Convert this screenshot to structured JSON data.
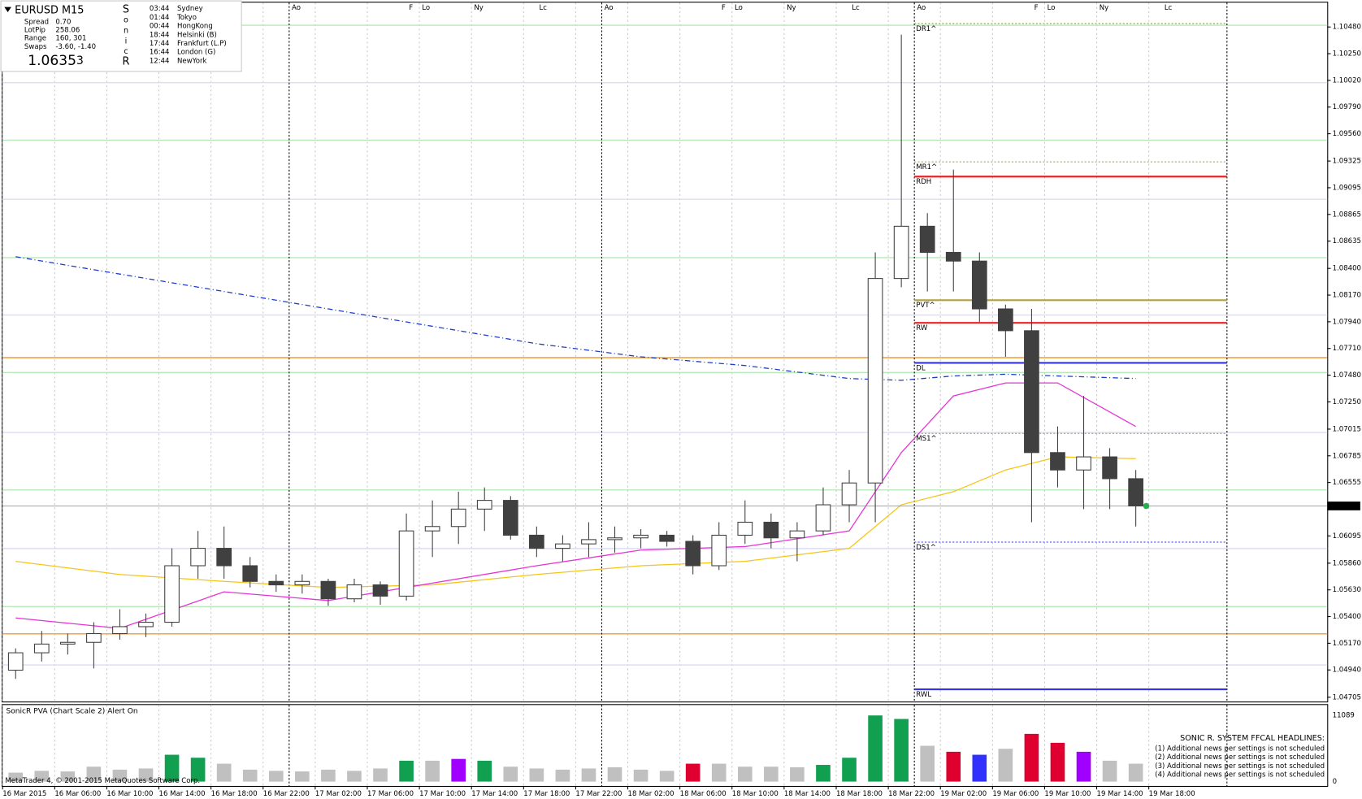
{
  "panel": {
    "symbol": "EURUSD  M15",
    "rows": [
      [
        "Spread",
        "0.70"
      ],
      [
        "LotPip",
        "258.06"
      ],
      [
        "Range",
        "160, 301"
      ],
      [
        "Swaps",
        "-3.60, -1.40"
      ]
    ],
    "bid_main": "1.0635",
    "bid_pip": "3",
    "brand": [
      "S",
      "o",
      "n",
      "i",
      "c",
      "R"
    ],
    "sessions": [
      [
        "03:44",
        "Sydney"
      ],
      [
        "01:44",
        "Tokyo"
      ],
      [
        "00:44",
        "HongKong"
      ],
      [
        "18:44",
        "Helsinki  (B)"
      ],
      [
        "17:44",
        "Frankfurt  (L.P)"
      ],
      [
        "16:44",
        "London  (G)"
      ],
      [
        "12:44",
        "NewYork"
      ]
    ]
  },
  "headlines": {
    "title": "SONIC R. SYSTEM  FFCAL HEADLINES:",
    "items": [
      "(1)  Additional news per settings is not scheduled",
      "(2)  Additional news per settings is not scheduled",
      "(3)  Additional news per settings is not scheduled",
      "(4)  Additional news per settings is not scheduled"
    ]
  },
  "footer": "MetaTrader 4, © 2001-2015 MetaQuotes Software Corp.",
  "chart_data": [
    {
      "type": "candlestick",
      "xlim": [
        -0.2,
        101.7
      ],
      "ylim": [
        1.04668,
        1.1069
      ],
      "xticks": [
        {
          "value": 0,
          "label": "16 Mar 2015"
        },
        {
          "value": 4,
          "label": "16 Mar 06:00"
        },
        {
          "value": 8,
          "label": "16 Mar 10:00"
        },
        {
          "value": 12,
          "label": "16 Mar 14:00"
        },
        {
          "value": 16,
          "label": "16 Mar 18:00"
        },
        {
          "value": 20,
          "label": "16 Mar 22:00"
        },
        {
          "value": 24,
          "label": "17 Mar 02:00"
        },
        {
          "value": 28,
          "label": "17 Mar 06:00"
        },
        {
          "value": 32,
          "label": "17 Mar 10:00"
        },
        {
          "value": 36,
          "label": "17 Mar 14:00"
        },
        {
          "value": 40,
          "label": "17 Mar 18:00"
        },
        {
          "value": 44,
          "label": "17 Mar 22:00"
        },
        {
          "value": 48,
          "label": "18 Mar 02:00"
        },
        {
          "value": 52,
          "label": "18 Mar 06:00"
        },
        {
          "value": 56,
          "label": "18 Mar 10:00"
        },
        {
          "value": 60,
          "label": "18 Mar 14:00"
        },
        {
          "value": 64,
          "label": "18 Mar 18:00"
        },
        {
          "value": 68,
          "label": "18 Mar 22:00"
        },
        {
          "value": 72,
          "label": "19 Mar 02:00"
        },
        {
          "value": 76,
          "label": "19 Mar 06:00"
        },
        {
          "value": 80,
          "label": "19 Mar 10:00"
        },
        {
          "value": 84,
          "label": "19 Mar 14:00"
        },
        {
          "value": 88,
          "label": "19 Mar 18:00"
        }
      ],
      "yticks": [
        {
          "value": 1.1048,
          "label": "1.10480"
        },
        {
          "value": 1.1025,
          "label": "1.10250"
        },
        {
          "value": 1.1002,
          "label": "1.10020"
        },
        {
          "value": 1.0979,
          "label": "1.09790"
        },
        {
          "value": 1.0956,
          "label": "1.09560"
        },
        {
          "value": 1.09325,
          "label": "1.09325"
        },
        {
          "value": 1.09095,
          "label": "1.09095"
        },
        {
          "value": 1.08865,
          "label": "1.08865"
        },
        {
          "value": 1.08635,
          "label": "1.08635"
        },
        {
          "value": 1.084,
          "label": "1.08400"
        },
        {
          "value": 1.0817,
          "label": "1.08170"
        },
        {
          "value": 1.0794,
          "label": "1.07940"
        },
        {
          "value": 1.0771,
          "label": "1.07710"
        },
        {
          "value": 1.0748,
          "label": "1.07480"
        },
        {
          "value": 1.0725,
          "label": "1.07250"
        },
        {
          "value": 1.07015,
          "label": "1.07015"
        },
        {
          "value": 1.06785,
          "label": "1.06785"
        },
        {
          "value": 1.06555,
          "label": "1.06555"
        },
        {
          "value": 1.06095,
          "label": "1.06095"
        },
        {
          "value": 1.0586,
          "label": "1.05860"
        },
        {
          "value": 1.0563,
          "label": "1.05630"
        },
        {
          "value": 1.054,
          "label": "1.05400"
        },
        {
          "value": 1.0517,
          "label": "1.05170"
        },
        {
          "value": 1.0494,
          "label": "1.04940"
        },
        {
          "value": 1.04705,
          "label": "1.04705"
        }
      ],
      "current": {
        "value": 1.06353,
        "label": "1.06353",
        "color": "#22b14c"
      },
      "up_color": "#ffffff",
      "down_color": "#404040",
      "wick_color": "#404040",
      "x": [
        1,
        3,
        5,
        7,
        9,
        11,
        13,
        15,
        17,
        19,
        21,
        23,
        25,
        27,
        29,
        31,
        33,
        35,
        37,
        39,
        41,
        43,
        45,
        47,
        49,
        51,
        53,
        55,
        57,
        59,
        61,
        63,
        65,
        67,
        69,
        71,
        73,
        75,
        77,
        79,
        81,
        83,
        85,
        87
      ],
      "open": [
        1.04938,
        1.05088,
        1.05163,
        1.05178,
        1.05253,
        1.05313,
        1.05351,
        1.05838,
        1.05988,
        1.05838,
        1.05703,
        1.05673,
        1.05703,
        1.05553,
        1.05673,
        1.05576,
        1.06138,
        1.06176,
        1.06326,
        1.06401,
        1.06101,
        1.05988,
        1.06026,
        1.06063,
        1.06078,
        1.06101,
        1.06048,
        1.05838,
        1.06101,
        1.06213,
        1.06078,
        1.06138,
        1.06363,
        1.06551,
        1.08313,
        1.08763,
        1.08538,
        1.08463,
        1.08051,
        1.07863,
        1.06813,
        1.06663,
        1.06776,
        1.06588
      ],
      "high": [
        1.05126,
        1.05276,
        1.05253,
        1.05351,
        1.05463,
        1.05426,
        1.05988,
        1.06138,
        1.06176,
        1.05913,
        1.05763,
        1.05763,
        1.05726,
        1.05726,
        1.05703,
        1.06288,
        1.06401,
        1.06476,
        1.06513,
        1.06438,
        1.06176,
        1.06101,
        1.06213,
        1.06176,
        1.06153,
        1.06138,
        1.06101,
        1.06213,
        1.06401,
        1.06288,
        1.06213,
        1.06513,
        1.06663,
        1.08538,
        1.10413,
        1.08876,
        1.09251,
        1.08538,
        1.08088,
        1.08051,
        1.07038,
        1.07301,
        1.06851,
        1.06663
      ],
      "low": [
        1.04863,
        1.05013,
        1.05073,
        1.04953,
        1.05201,
        1.05223,
        1.05313,
        1.05726,
        1.05726,
        1.05651,
        1.05613,
        1.05598,
        1.05493,
        1.05523,
        1.05501,
        1.05538,
        1.05913,
        1.06026,
        1.06138,
        1.06063,
        1.05913,
        1.05876,
        1.05913,
        1.05951,
        1.05988,
        1.06003,
        1.05763,
        1.05801,
        1.06026,
        1.05988,
        1.05876,
        1.06101,
        1.06213,
        1.06213,
        1.08238,
        1.08201,
        1.08201,
        1.07938,
        1.07638,
        1.06213,
        1.06513,
        1.06326,
        1.06326,
        1.06176
      ],
      "close": [
        1.05088,
        1.05163,
        1.05178,
        1.05253,
        1.05313,
        1.05351,
        1.05838,
        1.05988,
        1.05838,
        1.05703,
        1.05673,
        1.05703,
        1.05553,
        1.05673,
        1.05576,
        1.06138,
        1.06176,
        1.06326,
        1.06401,
        1.06101,
        1.05988,
        1.06026,
        1.06063,
        1.06078,
        1.06101,
        1.06048,
        1.05838,
        1.06101,
        1.06213,
        1.06078,
        1.06138,
        1.06363,
        1.06551,
        1.08313,
        1.08763,
        1.08538,
        1.08463,
        1.08051,
        1.07863,
        1.06813,
        1.06663,
        1.06776,
        1.06588,
        1.06353
      ],
      "overlays": [
        {
          "color": "#1e3ccc",
          "dash": true,
          "x": [
            1,
            9,
            17,
            25,
            33,
            41,
            49,
            57,
            65,
            69,
            73,
            77,
            81,
            87
          ],
          "values": [
            1.08501,
            1.08351,
            1.08201,
            1.08051,
            1.07901,
            1.07751,
            1.07638,
            1.07563,
            1.07451,
            1.07436,
            1.07473,
            1.07488,
            1.07473,
            1.07451
          ]
        },
        {
          "color": "#f5c518",
          "dash": false,
          "x": [
            1,
            9,
            17,
            25,
            33,
            41,
            49,
            57,
            65,
            69,
            73,
            77,
            81,
            87
          ],
          "values": [
            1.05876,
            1.05763,
            1.05703,
            1.05651,
            1.05673,
            1.05763,
            1.05838,
            1.05876,
            1.05988,
            1.06363,
            1.06476,
            1.06663,
            1.06776,
            1.06761
          ]
        },
        {
          "color": "#e633d4",
          "dash": false,
          "x": [
            1,
            9,
            17,
            25,
            33,
            41,
            49,
            57,
            65,
            69,
            73,
            77,
            81,
            87
          ],
          "values": [
            1.05388,
            1.05298,
            1.05613,
            1.05538,
            1.05688,
            1.05838,
            1.05973,
            1.06003,
            1.06138,
            1.06813,
            1.07301,
            1.07413,
            1.07413,
            1.07038
          ]
        }
      ],
      "hlines": [
        {
          "value": 1.10495,
          "color": "#b8e8b8"
        },
        {
          "value": 1.09505,
          "color": "#b8e8b8"
        },
        {
          "value": 1.08493,
          "color": "#b8e8b8"
        },
        {
          "value": 1.07503,
          "color": "#b8e8b8"
        },
        {
          "value": 1.06491,
          "color": "#b8e8b8"
        },
        {
          "value": 1.05486,
          "color": "#b8e8b8"
        },
        {
          "value": 1.1,
          "color": "#dcdcf6"
        },
        {
          "value": 1.08995,
          "color": "#dcdcf6"
        },
        {
          "value": 1.07998,
          "color": "#dcdcf6"
        },
        {
          "value": 1.06986,
          "color": "#dcdcf6"
        },
        {
          "value": 1.05986,
          "color": "#dcdcf6"
        },
        {
          "value": 1.04983,
          "color": "#dcdcf6"
        },
        {
          "value": 1.07631,
          "color": "#f39c33"
        },
        {
          "value": 1.05251,
          "color": "#f39c33"
        }
      ],
      "level_range": [
        70,
        94
      ],
      "levels": [
        {
          "label": "DR1^",
          "value": 1.1051,
          "color": "#9a9a40",
          "dash": true
        },
        {
          "label": "MR1^",
          "value": 1.09318,
          "color": "#9a9a40",
          "dash": true
        },
        {
          "label": "RDH",
          "value": 1.09191,
          "color": "#ee2222",
          "dash": false
        },
        {
          "label": "PVT^",
          "value": 1.08126,
          "color": "#b0a040",
          "dash": false
        },
        {
          "label": "RW",
          "value": 1.07931,
          "color": "#ee2222",
          "dash": false
        },
        {
          "label": "DL",
          "value": 1.07586,
          "color": "#3333ee",
          "dash": false
        },
        {
          "label": "MS1^",
          "value": 1.06978,
          "color": "#9a9a40",
          "dash": true
        },
        {
          "label": "DS1^",
          "value": 1.06041,
          "color": "#3333ee",
          "dash": true
        },
        {
          "label": "RWL",
          "value": 1.04773,
          "color": "#3333ee",
          "dash": false
        }
      ],
      "day_separators": [
        22,
        46,
        70,
        94
      ],
      "session_markers": [
        {
          "label": "Ao",
          "x": 22
        },
        {
          "label": "F",
          "x": 31
        },
        {
          "label": "Lo",
          "x": 32
        },
        {
          "label": "Ny",
          "x": 36
        },
        {
          "label": "Lc",
          "x": 41
        },
        {
          "label": "Ao",
          "x": 46
        },
        {
          "label": "F",
          "x": 55
        },
        {
          "label": "Lo",
          "x": 56
        },
        {
          "label": "Ny",
          "x": 60
        },
        {
          "label": "Lc",
          "x": 65
        },
        {
          "label": "Ao",
          "x": 70
        },
        {
          "label": "F",
          "x": 79
        },
        {
          "label": "Lo",
          "x": 80
        },
        {
          "label": "Ny",
          "x": 84
        },
        {
          "label": "Lc",
          "x": 89
        }
      ]
    },
    {
      "type": "bar",
      "title": "SonicR PVA  (Chart Scale 2)  Alert On",
      "ylim": [
        0,
        11089
      ],
      "yticks": [
        0,
        11089
      ],
      "x": [
        1,
        3,
        5,
        7,
        9,
        11,
        13,
        15,
        17,
        19,
        21,
        23,
        25,
        27,
        29,
        31,
        33,
        35,
        37,
        39,
        41,
        43,
        45,
        47,
        49,
        51,
        53,
        55,
        57,
        59,
        61,
        63,
        65,
        67,
        69,
        71,
        73,
        75,
        77,
        79,
        81,
        83,
        85,
        87
      ],
      "values": [
        1500,
        1800,
        1700,
        2500,
        2000,
        2200,
        4500,
        4000,
        3000,
        2000,
        1800,
        1700,
        2000,
        1800,
        2200,
        3500,
        3500,
        3800,
        3500,
        2500,
        2200,
        2000,
        2200,
        2400,
        2000,
        1800,
        3000,
        3000,
        2500,
        2500,
        2400,
        2800,
        4000,
        11089,
        10500,
        6000,
        5000,
        4500,
        5500,
        8000,
        6500,
        5000,
        3500,
        3000
      ],
      "colors": [
        "#c0c0c0",
        "#c0c0c0",
        "#c0c0c0",
        "#c0c0c0",
        "#c0c0c0",
        "#c0c0c0",
        "#10a050",
        "#10a050",
        "#c0c0c0",
        "#c0c0c0",
        "#c0c0c0",
        "#c0c0c0",
        "#c0c0c0",
        "#c0c0c0",
        "#c0c0c0",
        "#10a050",
        "#c0c0c0",
        "#a000ff",
        "#10a050",
        "#c0c0c0",
        "#c0c0c0",
        "#c0c0c0",
        "#c0c0c0",
        "#c0c0c0",
        "#c0c0c0",
        "#c0c0c0",
        "#e00030",
        "#c0c0c0",
        "#c0c0c0",
        "#c0c0c0",
        "#c0c0c0",
        "#10a050",
        "#10a050",
        "#10a050",
        "#10a050",
        "#c0c0c0",
        "#e00030",
        "#3030ff",
        "#c0c0c0",
        "#e00030",
        "#e00030",
        "#a000ff",
        "#c0c0c0",
        "#c0c0c0"
      ]
    }
  ]
}
